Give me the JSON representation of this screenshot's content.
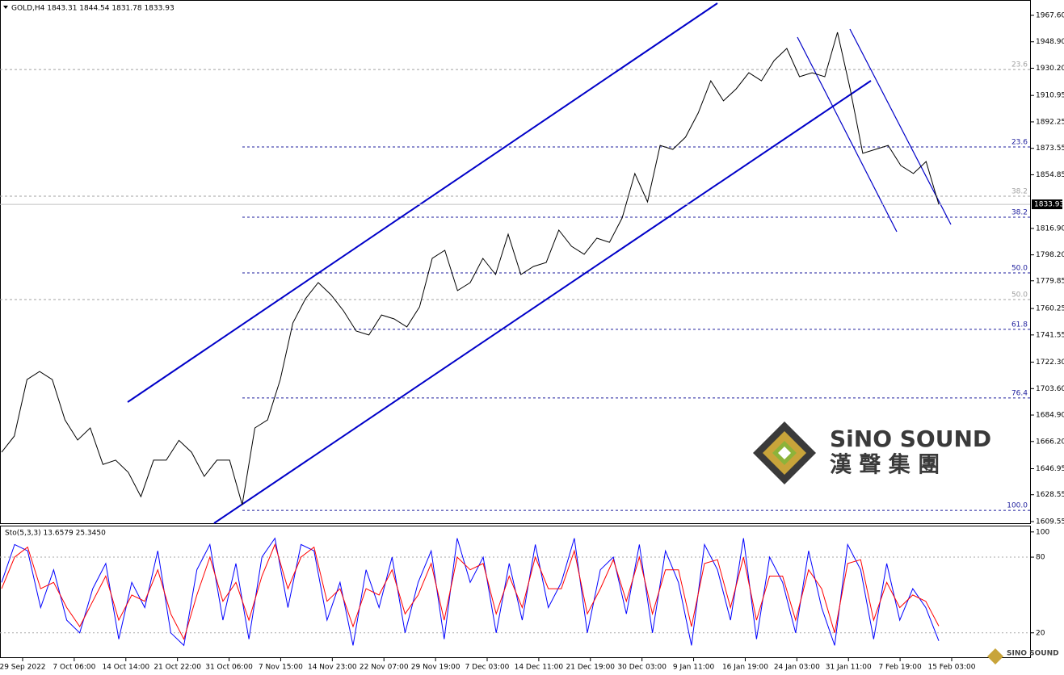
{
  "chart_data": [
    {
      "type": "line",
      "title": "GOLD,H4 1843.31 1844.54 1831.78 1833.93",
      "series": [
        {
          "color": "#000000",
          "values": [
            1658.6,
            1670,
            1710,
            1715.7,
            1710,
            1681.5,
            1667.2,
            1675.8,
            1650,
            1653,
            1644.4,
            1627.2,
            1653,
            1653,
            1667,
            1658.6,
            1641.5,
            1653,
            1653,
            1621.5,
            1675.8,
            1681.5,
            1710,
            1750,
            1767.2,
            1778.6,
            1770,
            1758.6,
            1744.3,
            1741.5,
            1755.7,
            1752.9,
            1747.2,
            1761.4,
            1795.7,
            1801.4,
            1772.9,
            1778.6,
            1795.7,
            1784.3,
            1812.8,
            1784.3,
            1790,
            1792.8,
            1815.7,
            1804.3,
            1798.6,
            1810,
            1807.1,
            1824.3,
            1855.7,
            1835.7,
            1875.6,
            1872.8,
            1881.4,
            1898.5,
            1921.3,
            1907.1,
            1915.6,
            1927,
            1921.3,
            1935.6,
            1944.2,
            1924.2,
            1927,
            1924.2,
            1955.6,
            1915.6,
            1870,
            1872.8,
            1875.6,
            1861.4,
            1855.7,
            1864.2,
            1833.93
          ]
        }
      ],
      "last_price": 1833.93,
      "ylim": [
        1608.4,
        1978.45
      ],
      "yticks": [
        {
          "value": 1967.6,
          "label": "1967.60"
        },
        {
          "value": 1948.9,
          "label": "1948.90"
        },
        {
          "value": 1930.2,
          "label": "1930.20"
        },
        1910.95,
        1892.25,
        1873.55,
        1854.85,
        {
          "value": 1816.9,
          "label": "1816.90"
        },
        {
          "value": 1798.2,
          "label": "1798.20"
        },
        1779.85,
        1760.25,
        1741.55,
        {
          "value": 1722.3,
          "label": "1722.30"
        },
        {
          "value": 1703.6,
          "label": "1703.60"
        },
        {
          "value": 1684.9,
          "label": "1684.90"
        },
        {
          "value": 1666.2,
          "label": "1666.20"
        },
        1646.95,
        1628.55,
        1609.55
      ],
      "fib_levels": [
        {
          "label": "23.6",
          "value": 1929.3,
          "color": "#a0a0a0"
        },
        {
          "label": "38.2",
          "value": 1839.7,
          "color": "#a0a0a0"
        },
        {
          "label": "50.0",
          "value": 1766.6,
          "color": "#a0a0a0"
        },
        {
          "label": "23.6",
          "value": 1874.5,
          "color": "#1c1c9c"
        },
        {
          "label": "38.2",
          "value": 1824.8,
          "color": "#1c1c9c"
        },
        {
          "label": "50.0",
          "value": 1785.4,
          "color": "#1c1c9c"
        },
        {
          "label": "61.8",
          "value": 1745.5,
          "color": "#1c1c9c"
        },
        {
          "label": "76.4",
          "value": 1697.0,
          "color": "#1c1c9c"
        },
        {
          "label": "100.0",
          "value": 1617.5,
          "color": "#1c1c9c"
        }
      ],
      "time_labels": [
        "29 Sep 2022",
        "7 Oct 06:00",
        "14 Oct 14:00",
        "21 Oct 22:00",
        "31 Oct 06:00",
        "7 Nov 15:00",
        "14 Nov 23:00",
        "22 Nov 07:00",
        "29 Nov 19:00",
        "7 Dec 03:00",
        "14 Dec 11:00",
        "21 Dec 19:00",
        "30 Dec 03:00",
        "9 Jan 11:00",
        "16 Jan 19:00",
        "24 Jan 03:00",
        "31 Jan 11:00",
        "7 Feb 19:00",
        "15 Feb 03:00"
      ]
    },
    {
      "type": "line",
      "title": "Sto(5,3,3) 13.6579 25.3450",
      "series": [
        {
          "color": "#0000ff",
          "values": [
            60,
            90,
            85,
            40,
            70,
            30,
            20,
            55,
            75,
            15,
            60,
            40,
            85,
            20,
            10,
            70,
            90,
            30,
            75,
            15,
            80,
            95,
            40,
            90,
            85,
            30,
            60,
            10,
            70,
            40,
            80,
            20,
            60,
            85,
            15,
            95,
            60,
            80,
            20,
            75,
            30,
            90,
            40,
            60,
            95,
            20,
            70,
            80,
            35,
            90,
            20,
            85,
            60,
            10,
            90,
            70,
            30,
            95,
            15,
            80,
            60,
            20,
            85,
            40,
            10,
            90,
            70,
            15,
            75,
            30,
            55,
            40,
            13.6579
          ]
        },
        {
          "color": "#ff0000",
          "values": [
            55,
            80,
            88,
            55,
            60,
            40,
            25,
            45,
            65,
            30,
            50,
            45,
            70,
            35,
            15,
            50,
            80,
            45,
            60,
            30,
            65,
            90,
            55,
            80,
            88,
            45,
            55,
            25,
            55,
            50,
            70,
            35,
            50,
            75,
            30,
            80,
            70,
            75,
            35,
            65,
            40,
            80,
            55,
            55,
            85,
            35,
            55,
            78,
            45,
            80,
            35,
            70,
            70,
            25,
            75,
            78,
            40,
            80,
            30,
            65,
            65,
            30,
            70,
            55,
            20,
            75,
            78,
            30,
            60,
            40,
            50,
            45,
            25.345
          ]
        }
      ],
      "ylim": [
        0,
        105
      ],
      "yticks": [
        100,
        80,
        20
      ]
    }
  ],
  "watermark": {
    "brand": "SiNO SOUND",
    "chinese": "漢 聲 集 團",
    "small": "SINO SOUND"
  }
}
